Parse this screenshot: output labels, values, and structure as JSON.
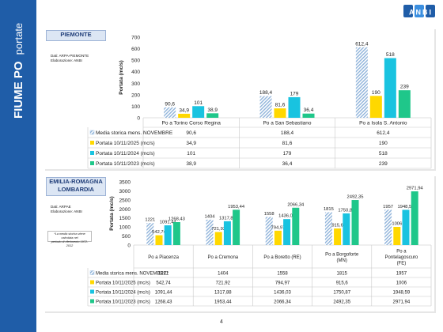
{
  "sidebar": {
    "title_bold": "FIUME PO",
    "title_light": "portate"
  },
  "page_number": "4",
  "logo": {
    "text": "ANBI"
  },
  "colors": {
    "sidebar": "#1f5da8",
    "hist": "#8fb3da",
    "y2025": "#ffd800",
    "y2024": "#19c3e0",
    "y2023": "#1fc78a"
  },
  "piemonte": {
    "region": "PIEMONTE",
    "source_lines": [
      "Dati: ARPA-PIEMONTE",
      "Elaborazione: ANBI"
    ]
  },
  "emilia": {
    "region_lines": [
      "EMILIA-ROMAGNA",
      "LOMBARDIA"
    ],
    "source_lines": [
      "Dati: ARPAE",
      "Elaborazione: ANBI"
    ],
    "note_lines": [
      "*La media storica viene calcolata nel",
      "periodo di riferimento 1972-2012"
    ]
  },
  "chart_data": [
    {
      "type": "bar",
      "ylabel": "Portata (mc/s)",
      "ylim": [
        0,
        700
      ],
      "yticks": [
        0,
        100,
        200,
        300,
        400,
        500,
        600,
        700
      ],
      "categories": [
        "Po a Torino Corso Regina",
        "Po a San Sebastiano",
        "Po a Isola S. Antonio"
      ],
      "grid": false,
      "series": [
        {
          "name": "Media storica mens. NOVEMBRE",
          "values": [
            90.6,
            188.4,
            612.4
          ],
          "labels": [
            "90,6",
            "188,4",
            "612,4"
          ],
          "pattern": "hatch"
        },
        {
          "name": "Portata 10/11/2025 (mc/s)",
          "values": [
            34.9,
            81.6,
            190
          ],
          "labels": [
            "34,9",
            "81,6",
            "190"
          ]
        },
        {
          "name": "Portata 10/11/2024 (mc/s)",
          "values": [
            101,
            179,
            518
          ],
          "labels": [
            "101",
            "179",
            "518"
          ]
        },
        {
          "name": "Portata 10/11/2023 (mc/s)",
          "values": [
            38.9,
            36.4,
            239
          ],
          "labels": [
            "38,9",
            "36,4",
            "239"
          ]
        }
      ]
    },
    {
      "type": "bar",
      "ylabel": "Portata (mc/s)",
      "ylim": [
        0,
        3500
      ],
      "yticks": [
        0,
        500,
        1000,
        1500,
        2000,
        2500,
        3000,
        3500
      ],
      "categories": [
        "Po a Piacenza",
        "Po a Cremona",
        "Po a Boretto (RE)",
        "Po a Borgoforte (MN)",
        "Po a Pontelagoscuro (FE)"
      ],
      "grid": false,
      "series": [
        {
          "name": "Media storica mens. NOVEMBRE*",
          "values": [
            1221,
            1404,
            1558,
            1815,
            1957
          ],
          "labels": [
            "1221",
            "1404",
            "1558",
            "1815",
            "1957"
          ],
          "pattern": "hatch"
        },
        {
          "name": "Portata 10/11/2025 (mc/s)",
          "values": [
            542.74,
            721.92,
            794.97,
            915.6,
            1006
          ],
          "labels": [
            "542,74",
            "721,92",
            "794,97",
            "915,6",
            "1006"
          ]
        },
        {
          "name": "Portata 10/11/2024 (mc/s)",
          "values": [
            1091.44,
            1317.88,
            1436.03,
            1750.87,
            1948.59
          ],
          "labels": [
            "1091,44",
            "1317,88",
            "1436,03",
            "1750,87",
            "1948,59"
          ]
        },
        {
          "name": "Portata 10/11/2023 (mc/s)",
          "values": [
            1268.43,
            1953.44,
            2066.34,
            2492.35,
            2971.94
          ],
          "labels": [
            "1268,43",
            "1953,44",
            "2066,34",
            "2492,35",
            "2971,94"
          ]
        }
      ]
    }
  ]
}
